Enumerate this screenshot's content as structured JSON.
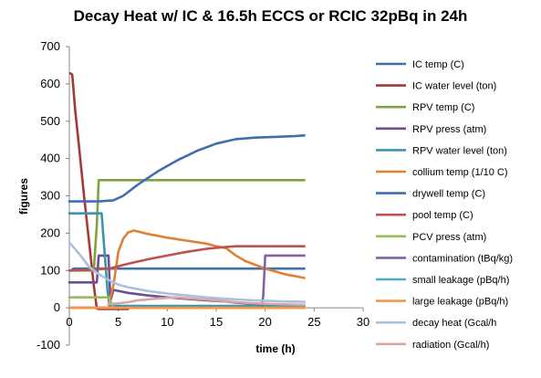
{
  "chart_data": {
    "type": "line",
    "title": "Decay Heat w/ IC & 16.5h ECCS or RCIC  32pBq in 24h",
    "xlabel": "time (h)",
    "ylabel": "figures",
    "xlim": [
      0,
      30
    ],
    "ylim": [
      -100,
      700
    ],
    "xticks": [
      "0",
      "5",
      "10",
      "15",
      "20",
      "25",
      "30"
    ],
    "yticks": [
      "-100",
      "0",
      "100",
      "200",
      "300",
      "400",
      "500",
      "600",
      "700"
    ],
    "grid": false,
    "legend_position": "right",
    "series": [
      {
        "name": "IC temp (C)",
        "color": "#3f6fb0",
        "points": [
          [
            0,
            100
          ],
          [
            0.2,
            100
          ],
          [
            0.4,
            105
          ],
          [
            5,
            105
          ],
          [
            10,
            105
          ],
          [
            15,
            105
          ],
          [
            20,
            105
          ],
          [
            24,
            105
          ]
        ]
      },
      {
        "name": "IC water level (ton)",
        "color": "#a33a35",
        "points": [
          [
            0.1,
            628
          ],
          [
            0.3,
            625
          ],
          [
            0.6,
            530
          ],
          [
            1,
            430
          ],
          [
            1.5,
            300
          ],
          [
            2,
            180
          ],
          [
            2.5,
            60
          ],
          [
            2.8,
            -2
          ],
          [
            3,
            -3
          ],
          [
            4,
            -3
          ],
          [
            5,
            -3
          ],
          [
            6,
            -3
          ]
        ]
      },
      {
        "name": "RPV temp (C)",
        "color": "#7ea23c",
        "points": [
          [
            0,
            100
          ],
          [
            0.5,
            100
          ],
          [
            2.5,
            100
          ],
          [
            2.8,
            220
          ],
          [
            3,
            342
          ],
          [
            5,
            342
          ],
          [
            10,
            342
          ],
          [
            15,
            342
          ],
          [
            20,
            342
          ],
          [
            24,
            342
          ]
        ]
      },
      {
        "name": "RPV press (atm)",
        "color": "#6b4f92",
        "points": [
          [
            0,
            68
          ],
          [
            0.3,
            68
          ],
          [
            2.8,
            68
          ],
          [
            3,
            140
          ],
          [
            4,
            140
          ],
          [
            4.2,
            20
          ],
          [
            4.5,
            48
          ],
          [
            6,
            40
          ],
          [
            8,
            33
          ],
          [
            10,
            28
          ],
          [
            12,
            24
          ],
          [
            14,
            20
          ],
          [
            16,
            17
          ],
          [
            17,
            14
          ],
          [
            18,
            12
          ],
          [
            19,
            10
          ],
          [
            20,
            8
          ],
          [
            22,
            8
          ],
          [
            24,
            8
          ]
        ]
      },
      {
        "name": "RPV water level (ton)",
        "color": "#3996ab",
        "points": [
          [
            0,
            253
          ],
          [
            3,
            253
          ],
          [
            3.3,
            253
          ],
          [
            3.6,
            150
          ],
          [
            3.9,
            45
          ],
          [
            4.1,
            5
          ],
          [
            4.5,
            5
          ],
          [
            10,
            5
          ],
          [
            20,
            5
          ],
          [
            24,
            5
          ]
        ]
      },
      {
        "name": "collium temp (1/10 C)",
        "color": "#de8134",
        "points": [
          [
            4,
            8
          ],
          [
            4.5,
            60
          ],
          [
            5,
            150
          ],
          [
            5.5,
            185
          ],
          [
            6,
            202
          ],
          [
            6.6,
            207
          ],
          [
            8,
            198
          ],
          [
            10,
            188
          ],
          [
            12,
            180
          ],
          [
            14,
            172
          ],
          [
            15,
            165
          ],
          [
            16,
            160
          ],
          [
            17,
            140
          ],
          [
            18,
            125
          ],
          [
            20,
            105
          ],
          [
            22,
            90
          ],
          [
            24,
            80
          ]
        ]
      },
      {
        "name": "drywell temp (C)",
        "color": "#3f6fb0",
        "points": [
          [
            0,
            285
          ],
          [
            3,
            285
          ],
          [
            4.5,
            288
          ],
          [
            5.5,
            300
          ],
          [
            7,
            330
          ],
          [
            9,
            365
          ],
          [
            11,
            395
          ],
          [
            13,
            420
          ],
          [
            15,
            440
          ],
          [
            17,
            452
          ],
          [
            19,
            456
          ],
          [
            21,
            458
          ],
          [
            23,
            460
          ],
          [
            24,
            462
          ]
        ]
      },
      {
        "name": "pool temp (C)",
        "color": "#c0504d",
        "points": [
          [
            0,
            100
          ],
          [
            2,
            102
          ],
          [
            4,
            105
          ],
          [
            4.5,
            108
          ],
          [
            6,
            118
          ],
          [
            8,
            130
          ],
          [
            10,
            140
          ],
          [
            12,
            150
          ],
          [
            14,
            158
          ],
          [
            16,
            163
          ],
          [
            17,
            165
          ],
          [
            20,
            165
          ],
          [
            24,
            165
          ]
        ]
      },
      {
        "name": "PCV press (atm)",
        "color": "#9bbb59",
        "points": [
          [
            0,
            28
          ],
          [
            4,
            28
          ],
          [
            4.5,
            0
          ],
          [
            10,
            0
          ],
          [
            20,
            0
          ],
          [
            24,
            0
          ]
        ]
      },
      {
        "name": "contamination (tBq/kg)",
        "color": "#8064a2",
        "points": [
          [
            0,
            0
          ],
          [
            10,
            0
          ],
          [
            19.6,
            0
          ],
          [
            19.8,
            30
          ],
          [
            20,
            140
          ],
          [
            24,
            140
          ]
        ]
      },
      {
        "name": "small leakage (pBq/h)",
        "color": "#4bacc6",
        "points": [
          [
            0,
            0
          ],
          [
            12,
            0
          ],
          [
            24,
            0
          ]
        ]
      },
      {
        "name": "large leakage (pBq/h)",
        "color": "#f79646",
        "points": [
          [
            0,
            0
          ],
          [
            12,
            0
          ],
          [
            24,
            0
          ]
        ]
      },
      {
        "name": "decay heat (Gcal/h",
        "color": "#a9c0e0",
        "points": [
          [
            0,
            175
          ],
          [
            0.5,
            160
          ],
          [
            1,
            145
          ],
          [
            1.5,
            128
          ],
          [
            2,
            110
          ],
          [
            3,
            90
          ],
          [
            4,
            75
          ],
          [
            5,
            62
          ],
          [
            6,
            55
          ],
          [
            8,
            45
          ],
          [
            10,
            38
          ],
          [
            12,
            33
          ],
          [
            14,
            28
          ],
          [
            16,
            24
          ],
          [
            18,
            21
          ],
          [
            20,
            19
          ],
          [
            22,
            17
          ],
          [
            24,
            16
          ]
        ]
      },
      {
        "name": "radiation (Gcal/h)",
        "color": "#d9a5a4",
        "points": [
          [
            4,
            10
          ],
          [
            5,
            12
          ],
          [
            6,
            15
          ],
          [
            7,
            20
          ],
          [
            9,
            25
          ],
          [
            11,
            28
          ],
          [
            13,
            24
          ],
          [
            15,
            20
          ],
          [
            17,
            15
          ],
          [
            19,
            12
          ],
          [
            21,
            10
          ],
          [
            24,
            8
          ]
        ]
      }
    ]
  }
}
